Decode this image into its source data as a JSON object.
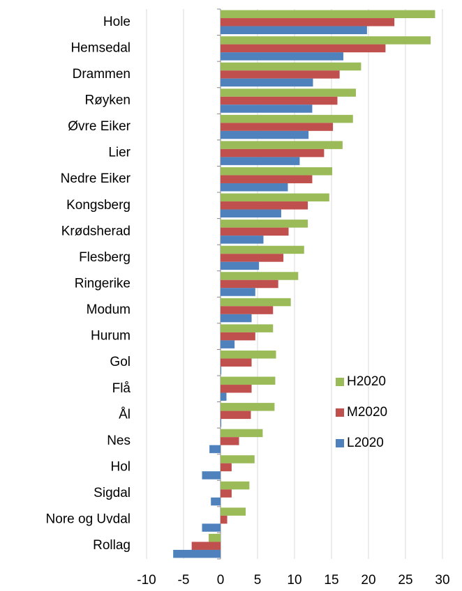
{
  "chart_data": {
    "type": "bar",
    "orientation": "horizontal",
    "categories": [
      "Hole",
      "Hemsedal",
      "Drammen",
      "Røyken",
      "Øvre Eiker",
      "Lier",
      "Nedre Eiker",
      "Kongsberg",
      "Krødsherad",
      "Flesberg",
      "Ringerike",
      "Modum",
      "Hurum",
      "Gol",
      "Flå",
      "Ål",
      "Nes",
      "Hol",
      "Sigdal",
      "Nore og Uvdal",
      "Rollag"
    ],
    "series": [
      {
        "name": "H2020",
        "color": "#9bbb59",
        "values": [
          29.0,
          28.4,
          19.0,
          18.3,
          17.9,
          16.5,
          15.1,
          14.7,
          11.8,
          11.3,
          10.5,
          9.5,
          7.1,
          7.5,
          7.4,
          7.3,
          5.7,
          4.6,
          3.9,
          3.4,
          -1.6
        ]
      },
      {
        "name": "M2020",
        "color": "#c0504d",
        "values": [
          23.5,
          22.3,
          16.1,
          15.8,
          15.2,
          14.0,
          12.4,
          11.8,
          9.2,
          8.5,
          7.8,
          7.1,
          4.7,
          4.2,
          4.2,
          4.1,
          2.5,
          1.5,
          1.5,
          0.9,
          -3.9
        ]
      },
      {
        "name": "L2020",
        "color": "#4f81bd",
        "values": [
          19.8,
          16.6,
          12.5,
          12.4,
          11.9,
          10.7,
          9.1,
          8.2,
          5.8,
          5.2,
          4.7,
          4.2,
          1.9,
          0.1,
          0.8,
          0.1,
          -1.5,
          -2.5,
          -1.3,
          -2.5,
          -6.4
        ]
      }
    ],
    "xlim": [
      -10,
      30
    ],
    "xticks": [
      -10,
      -5,
      0,
      5,
      10,
      15,
      20,
      25,
      30
    ],
    "grid": true,
    "legend": "lower right"
  }
}
